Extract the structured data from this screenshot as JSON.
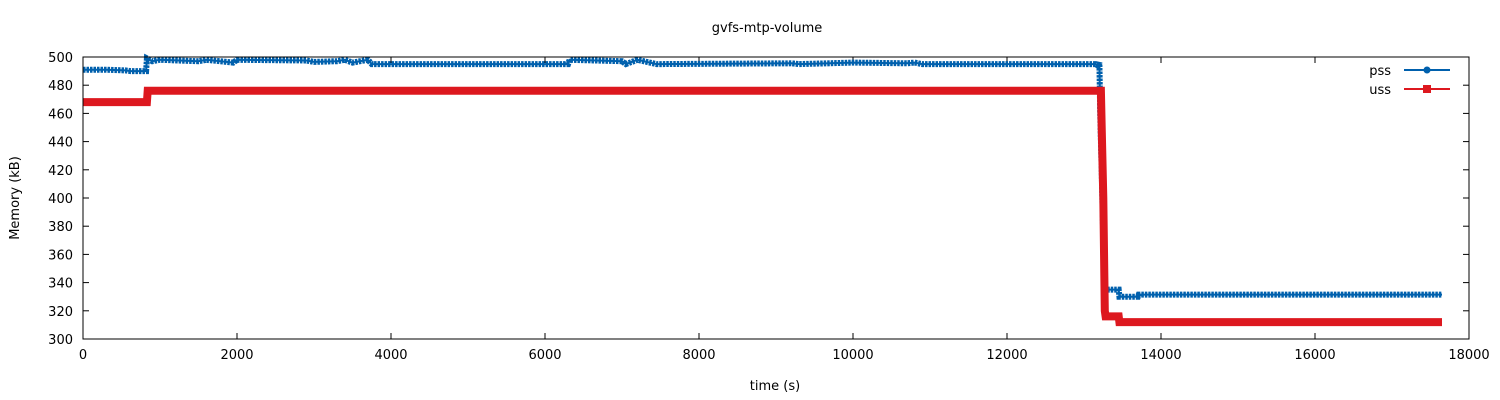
{
  "chart_data": {
    "type": "line",
    "title": "gvfs-mtp-volume",
    "xlabel": "time (s)",
    "ylabel": "Memory (kB)",
    "xlim": [
      0,
      18000
    ],
    "ylim": [
      300,
      500
    ],
    "xticks": [
      0,
      2000,
      4000,
      6000,
      8000,
      10000,
      12000,
      14000,
      16000,
      18000
    ],
    "yticks": [
      300,
      320,
      340,
      360,
      380,
      400,
      420,
      440,
      460,
      480,
      500
    ],
    "grid": false,
    "legend_position": "top-right",
    "series": [
      {
        "name": "pss",
        "color": "#0060ad",
        "marker": "circle",
        "points": [
          [
            0,
            491
          ],
          [
            300,
            491
          ],
          [
            550,
            490.5
          ],
          [
            620,
            490
          ],
          [
            820,
            490
          ],
          [
            830,
            499
          ],
          [
            900,
            497
          ],
          [
            1000,
            498
          ],
          [
            1500,
            497
          ],
          [
            1600,
            498
          ],
          [
            1950,
            496
          ],
          [
            2000,
            498
          ],
          [
            2900,
            497.5
          ],
          [
            3000,
            496.5
          ],
          [
            3300,
            497
          ],
          [
            3400,
            498
          ],
          [
            3500,
            496
          ],
          [
            3700,
            498
          ],
          [
            3750,
            495
          ],
          [
            6300,
            495
          ],
          [
            6320,
            498
          ],
          [
            7000,
            497
          ],
          [
            7050,
            495
          ],
          [
            7200,
            498
          ],
          [
            7450,
            495
          ],
          [
            9200,
            495.5
          ],
          [
            9300,
            495
          ],
          [
            10000,
            496
          ],
          [
            10700,
            495.5
          ],
          [
            10800,
            496
          ],
          [
            10900,
            495
          ],
          [
            13150,
            495
          ],
          [
            13180,
            494
          ],
          [
            13200,
            496
          ],
          [
            13210,
            460
          ],
          [
            13230,
            420
          ],
          [
            13260,
            350
          ],
          [
            13270,
            335
          ],
          [
            13450,
            335
          ],
          [
            13460,
            330
          ],
          [
            13700,
            330
          ],
          [
            13710,
            331.5
          ],
          [
            17650,
            331.5
          ]
        ]
      },
      {
        "name": "uss",
        "color": "#dd181f",
        "marker": "square",
        "points": [
          [
            0,
            468
          ],
          [
            830,
            468
          ],
          [
            840,
            476
          ],
          [
            13220,
            476
          ],
          [
            13230,
            450
          ],
          [
            13250,
            400
          ],
          [
            13270,
            320
          ],
          [
            13280,
            316
          ],
          [
            13450,
            316
          ],
          [
            13460,
            312
          ],
          [
            17650,
            312
          ]
        ]
      }
    ]
  }
}
